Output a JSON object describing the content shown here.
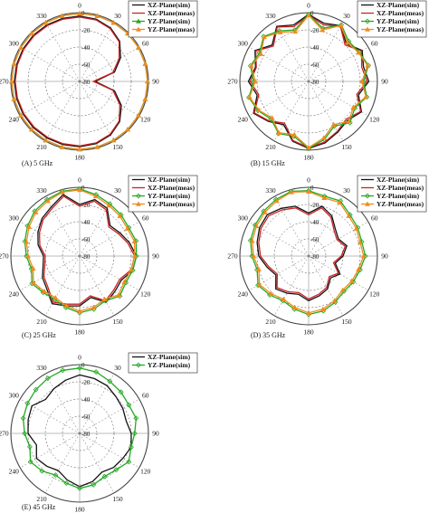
{
  "chart_data": [
    {
      "type": "line",
      "subtype": "polar",
      "caption": "(A) 5 GHz",
      "r_ticks": [
        0,
        -20,
        -40,
        -60,
        -80
      ],
      "r_range": [
        -80,
        0
      ],
      "angle_ticks": [
        0,
        30,
        60,
        90,
        120,
        150,
        180,
        210,
        240,
        270,
        300,
        330
      ],
      "angles": [
        0,
        15,
        30,
        45,
        60,
        75,
        90,
        105,
        120,
        135,
        150,
        165,
        180,
        195,
        210,
        225,
        240,
        255,
        270,
        285,
        300,
        315,
        330,
        345
      ],
      "legend_position": "top-right",
      "series": [
        {
          "name": "XZ-Plane(sim)",
          "color": "#111111",
          "marker": "none",
          "values": [
            -4,
            -5,
            -8,
            -14,
            -25,
            -38,
            -62,
            -38,
            -24,
            -14,
            -8,
            -5,
            -4,
            -4,
            -4,
            -4,
            -4,
            -4,
            -4,
            -4,
            -4,
            -4,
            -4,
            -4
          ]
        },
        {
          "name": "XZ-Plane(meas)",
          "color": "#cc2222",
          "marker": "none",
          "values": [
            -5,
            -6,
            -9,
            -15,
            -27,
            -40,
            -64,
            -40,
            -26,
            -15,
            -9,
            -6,
            -5,
            -5,
            -5,
            -5,
            -5,
            -5,
            -5,
            -5,
            -5,
            -5,
            -5,
            -5
          ]
        },
        {
          "name": "YZ-Plane(sim)",
          "color": "#22aa22",
          "marker": "triangle",
          "values": [
            -1,
            -1,
            -1,
            -1,
            -1,
            -1,
            -1,
            -1,
            -1,
            -1,
            -1,
            -1,
            -1,
            -1,
            -1,
            -1,
            -1,
            -1,
            -1,
            -1,
            -1,
            -1,
            -1,
            -1
          ]
        },
        {
          "name": "YZ-Plane(meas)",
          "color": "#f08c1e",
          "marker": "triangle",
          "values": [
            -1,
            -1,
            -1,
            -1,
            -1,
            -1,
            -1,
            -1,
            -1,
            -1,
            -1,
            -1,
            -1,
            -1,
            -1,
            -1,
            -1,
            -1,
            -1,
            -1,
            -1,
            -1,
            -1,
            -1
          ]
        }
      ]
    },
    {
      "type": "line",
      "subtype": "polar",
      "caption": "(B) 15 GHz",
      "r_ticks": [
        0,
        -20,
        -40,
        -60,
        -80
      ],
      "r_range": [
        -80,
        0
      ],
      "angle_ticks": [
        0,
        30,
        60,
        90,
        120,
        150,
        180,
        210,
        240,
        270,
        300,
        330
      ],
      "angles": [
        0,
        15,
        30,
        45,
        60,
        75,
        90,
        105,
        120,
        135,
        150,
        165,
        180,
        195,
        210,
        225,
        240,
        255,
        270,
        285,
        300,
        315,
        330,
        345
      ],
      "legend_position": "top-right",
      "series": [
        {
          "name": "XZ-Plane(sim)",
          "color": "#111111",
          "marker": "none",
          "values": [
            -2,
            -10,
            -5,
            -18,
            -8,
            -14,
            -10,
            -20,
            -9,
            -16,
            -12,
            -6,
            -2,
            -8,
            -22,
            -14,
            -6,
            -18,
            -10,
            -16,
            -8,
            -20,
            -6,
            -12
          ]
        },
        {
          "name": "XZ-Plane(meas)",
          "color": "#cc2222",
          "marker": "none",
          "values": [
            -3,
            -12,
            -6,
            -20,
            -9,
            -16,
            -12,
            -22,
            -10,
            -18,
            -13,
            -7,
            -3,
            -9,
            -24,
            -15,
            -7,
            -20,
            -12,
            -17,
            -9,
            -22,
            -7,
            -14
          ]
        },
        {
          "name": "YZ-Plane(sim)",
          "color": "#22aa22",
          "marker": "diamond",
          "values": [
            -2,
            -16,
            -4,
            -14,
            -12,
            -8,
            -16,
            -10,
            -18,
            -12,
            -20,
            -10,
            -2,
            -14,
            -10,
            -18,
            -12,
            -8,
            -16,
            -10,
            -14,
            -6,
            -12,
            -18
          ]
        },
        {
          "name": "YZ-Plane(meas)",
          "color": "#f08c1e",
          "marker": "triangle",
          "values": [
            -3,
            -18,
            -5,
            -16,
            -13,
            -9,
            -18,
            -11,
            -20,
            -14,
            -22,
            -12,
            -3,
            -16,
            -11,
            -20,
            -13,
            -9,
            -18,
            -11,
            -16,
            -7,
            -14,
            -20
          ]
        }
      ]
    },
    {
      "type": "line",
      "subtype": "polar",
      "caption": "(C) 25 GHz",
      "r_ticks": [
        0,
        -20,
        -40,
        -60,
        -80
      ],
      "r_range": [
        -80,
        0
      ],
      "angle_ticks": [
        0,
        30,
        60,
        90,
        120,
        150,
        180,
        210,
        240,
        270,
        300,
        330
      ],
      "angles": [
        0,
        15,
        30,
        45,
        60,
        75,
        90,
        105,
        120,
        135,
        150,
        165,
        180,
        195,
        210,
        225,
        240,
        255,
        270,
        285,
        300,
        315,
        330,
        345
      ],
      "legend_position": "top-right",
      "series": [
        {
          "name": "XZ-Plane(sim)",
          "color": "#111111",
          "marker": "none",
          "values": [
            -20,
            -12,
            -16,
            -30,
            -26,
            -20,
            -14,
            -16,
            -24,
            -22,
            -18,
            -30,
            -22,
            -20,
            -16,
            -26,
            -30,
            -36,
            -38,
            -30,
            -24,
            -18,
            -14,
            -6
          ]
        },
        {
          "name": "XZ-Plane(meas)",
          "color": "#cc2222",
          "marker": "none",
          "values": [
            -22,
            -14,
            -18,
            -32,
            -28,
            -22,
            -16,
            -18,
            -26,
            -24,
            -20,
            -32,
            -24,
            -22,
            -18,
            -28,
            -32,
            -38,
            -40,
            -32,
            -26,
            -20,
            -16,
            -8
          ]
        },
        {
          "name": "YZ-Plane(sim)",
          "color": "#22aa22",
          "marker": "diamond",
          "values": [
            -2,
            -6,
            -10,
            -12,
            -14,
            -12,
            -14,
            -16,
            -18,
            -14,
            -20,
            -16,
            -14,
            -18,
            -22,
            -20,
            -16,
            -22,
            -18,
            -14,
            -10,
            -6,
            -4,
            -2
          ]
        },
        {
          "name": "YZ-Plane(meas)",
          "color": "#f08c1e",
          "marker": "triangle",
          "values": [
            -3,
            -8,
            -12,
            -14,
            -16,
            -14,
            -16,
            -18,
            -20,
            -16,
            -22,
            -18,
            -16,
            -20,
            -24,
            -22,
            -18,
            -24,
            -20,
            -16,
            -12,
            -8,
            -6,
            -3
          ]
        }
      ]
    },
    {
      "type": "line",
      "subtype": "polar",
      "caption": "(D) 35 GHz",
      "r_ticks": [
        0,
        -20,
        -40,
        -60,
        -80
      ],
      "r_range": [
        -80,
        0
      ],
      "angle_ticks": [
        0,
        30,
        60,
        90,
        120,
        150,
        180,
        210,
        240,
        270,
        300,
        330
      ],
      "angles": [
        0,
        15,
        30,
        45,
        60,
        75,
        90,
        105,
        120,
        135,
        150,
        165,
        180,
        195,
        210,
        225,
        240,
        255,
        270,
        285,
        300,
        315,
        330,
        345
      ],
      "legend_position": "top-right",
      "series": [
        {
          "name": "XZ-Plane(sim)",
          "color": "#111111",
          "marker": "none",
          "values": [
            -30,
            -20,
            -26,
            -36,
            -40,
            -34,
            -40,
            -48,
            -38,
            -44,
            -36,
            -32,
            -28,
            -34,
            -30,
            -26,
            -36,
            -30,
            -22,
            -18,
            -14,
            -12,
            -16,
            -20
          ]
        },
        {
          "name": "XZ-Plane(meas)",
          "color": "#cc2222",
          "marker": "none",
          "values": [
            -32,
            -22,
            -28,
            -38,
            -42,
            -36,
            -42,
            -50,
            -40,
            -46,
            -38,
            -34,
            -30,
            -36,
            -32,
            -28,
            -38,
            -32,
            -24,
            -20,
            -16,
            -14,
            -18,
            -22
          ]
        },
        {
          "name": "YZ-Plane(sim)",
          "color": "#22aa22",
          "marker": "diamond",
          "values": [
            -4,
            -8,
            -6,
            -12,
            -14,
            -16,
            -14,
            -18,
            -20,
            -22,
            -18,
            -14,
            -12,
            -16,
            -20,
            -16,
            -12,
            -18,
            -14,
            -10,
            -8,
            -6,
            -4,
            -2
          ]
        },
        {
          "name": "YZ-Plane(meas)",
          "color": "#f08c1e",
          "marker": "triangle",
          "values": [
            -5,
            -10,
            -8,
            -14,
            -16,
            -18,
            -16,
            -20,
            -22,
            -24,
            -20,
            -16,
            -14,
            -18,
            -22,
            -18,
            -14,
            -20,
            -16,
            -12,
            -10,
            -8,
            -6,
            -3
          ]
        }
      ]
    },
    {
      "type": "line",
      "subtype": "polar",
      "caption": "(E) 45 GHz",
      "r_ticks": [
        0,
        -20,
        -40,
        -60,
        -80
      ],
      "r_range": [
        -80,
        0
      ],
      "angle_ticks": [
        0,
        30,
        60,
        90,
        120,
        150,
        180,
        210,
        240,
        270,
        300,
        330
      ],
      "angles": [
        0,
        15,
        30,
        45,
        60,
        75,
        90,
        105,
        120,
        135,
        150,
        165,
        180,
        195,
        210,
        225,
        240,
        255,
        270,
        285,
        300,
        315,
        330,
        345
      ],
      "legend_position": "top-right",
      "series": [
        {
          "name": "XZ-Plane(sim)",
          "color": "#111111",
          "marker": "none",
          "values": [
            -12,
            -14,
            -16,
            -20,
            -22,
            -24,
            -20,
            -18,
            -22,
            -24,
            -28,
            -22,
            -18,
            -24,
            -30,
            -26,
            -22,
            -28,
            -20,
            -18,
            -16,
            -24,
            -20,
            -16
          ]
        },
        {
          "name": "YZ-Plane(sim)",
          "color": "#22aa22",
          "marker": "diamond",
          "values": [
            -4,
            -6,
            -10,
            -12,
            -14,
            -12,
            -16,
            -18,
            -14,
            -20,
            -22,
            -18,
            -16,
            -20,
            -24,
            -18,
            -14,
            -20,
            -16,
            -12,
            -10,
            -8,
            -6,
            -4
          ]
        }
      ]
    }
  ]
}
